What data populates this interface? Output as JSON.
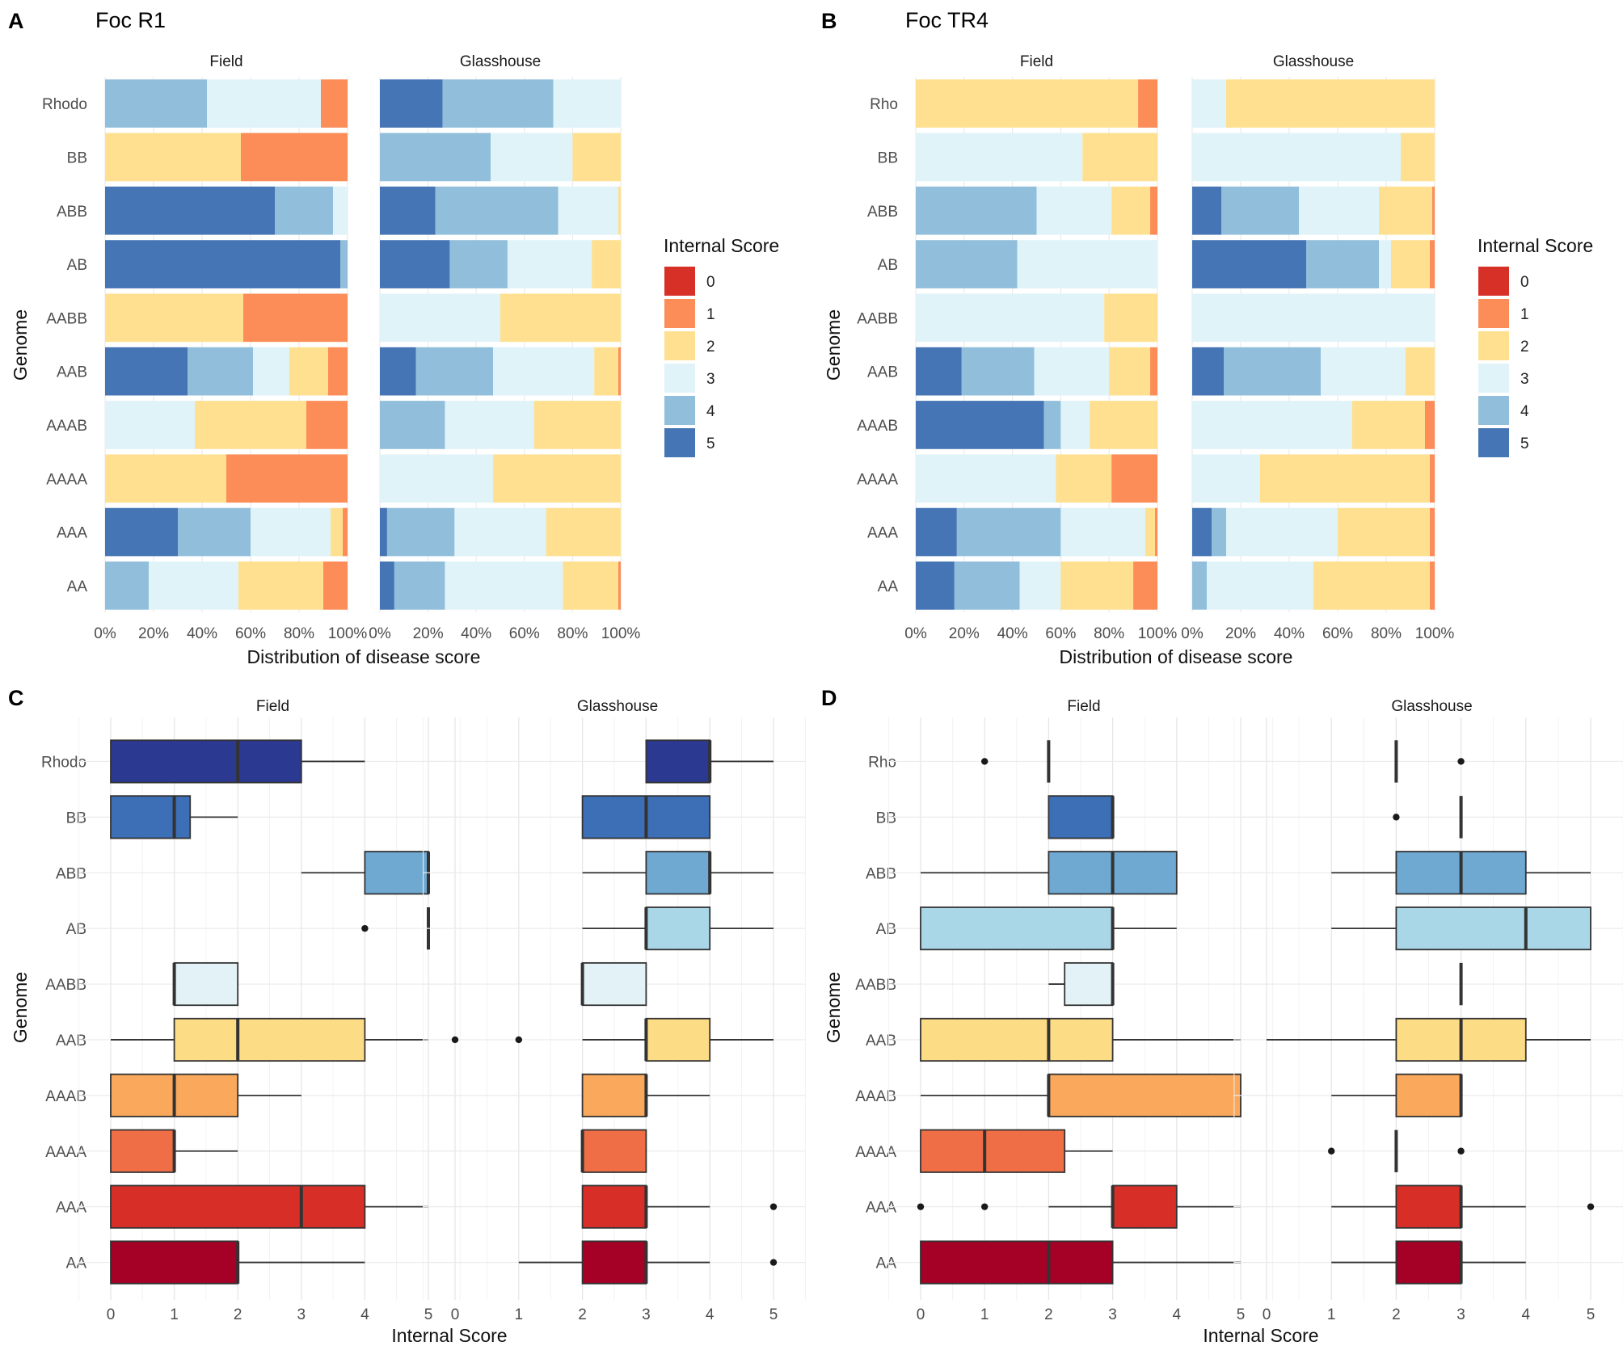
{
  "figure": {
    "panels": {
      "A": {
        "letter": "A",
        "title": "Foc R1"
      },
      "B": {
        "letter": "B",
        "title": "Foc TR4"
      },
      "C": {
        "letter": "C",
        "title": ""
      },
      "D": {
        "letter": "D",
        "title": ""
      }
    },
    "facets": [
      "Field",
      "Glasshouse"
    ],
    "axis_labels": {
      "genome": "Genome",
      "distribution": "Distribution of disease score",
      "internal": "Internal Score"
    },
    "legend": {
      "title": "Internal Score",
      "keys": [
        "0",
        "1",
        "2",
        "3",
        "4",
        "5"
      ],
      "colors": [
        "#d73027",
        "#fc8d59",
        "#fee090",
        "#e0f3f8",
        "#91bfdb",
        "#4575b4"
      ]
    }
  },
  "chart_data": [
    {
      "panel": "A",
      "type": "bar",
      "stacked": true,
      "orientation": "horizontal",
      "title": "Foc R1",
      "xlabel": "Distribution of disease score",
      "ylabel": "Genome",
      "xlim": [
        0,
        1
      ],
      "tick_labels": [
        "0%",
        "20%",
        "40%",
        "60%",
        "80%",
        "100%"
      ],
      "stack_order": [
        5,
        4,
        3,
        2,
        1,
        0
      ],
      "categories": [
        "Rhodo",
        "BB",
        "ABB",
        "AB",
        "AABB",
        "AAB",
        "AAAB",
        "AAAA",
        "AAA",
        "AA"
      ],
      "facets": [
        {
          "name": "Field",
          "proportions": {
            "Rhodo": [
              0,
              0.42,
              0.47,
              0,
              0.11,
              0
            ],
            "BB": [
              0,
              0,
              0,
              0.56,
              0.44,
              0
            ],
            "ABB": [
              0.7,
              0.24,
              0.06,
              0,
              0,
              0
            ],
            "AB": [
              0.97,
              0.03,
              0,
              0,
              0,
              0
            ],
            "AABB": [
              0,
              0,
              0,
              0.57,
              0.43,
              0
            ],
            "AAB": [
              0.34,
              0.27,
              0.15,
              0.16,
              0.08,
              0
            ],
            "AAAB": [
              0,
              0,
              0.37,
              0.46,
              0.17,
              0
            ],
            "AAAA": [
              0,
              0,
              0,
              0.5,
              0.5,
              0
            ],
            "AAA": [
              0.3,
              0.3,
              0.33,
              0.05,
              0.02,
              0
            ],
            "AA": [
              0,
              0.18,
              0.37,
              0.35,
              0.1,
              0
            ]
          }
        },
        {
          "name": "Glasshouse",
          "proportions": {
            "Rhodo": [
              0.26,
              0.46,
              0.28,
              0,
              0,
              0
            ],
            "BB": [
              0,
              0.46,
              0.34,
              0.2,
              0,
              0
            ],
            "ABB": [
              0.23,
              0.51,
              0.25,
              0.01,
              0,
              0
            ],
            "AB": [
              0.29,
              0.24,
              0.35,
              0.12,
              0,
              0
            ],
            "AABB": [
              0,
              0,
              0.5,
              0.5,
              0,
              0
            ],
            "AAB": [
              0.15,
              0.32,
              0.42,
              0.1,
              0.01,
              0
            ],
            "AAAB": [
              0,
              0.27,
              0.37,
              0.36,
              0,
              0
            ],
            "AAAA": [
              0,
              0,
              0.47,
              0.53,
              0,
              0
            ],
            "AAA": [
              0.03,
              0.28,
              0.38,
              0.31,
              0,
              0
            ],
            "AA": [
              0.06,
              0.21,
              0.49,
              0.23,
              0.01,
              0
            ]
          }
        }
      ]
    },
    {
      "panel": "B",
      "type": "bar",
      "stacked": true,
      "orientation": "horizontal",
      "title": "Foc TR4",
      "xlabel": "Distribution of disease score",
      "ylabel": "Genome",
      "xlim": [
        0,
        1
      ],
      "tick_labels": [
        "0%",
        "20%",
        "40%",
        "60%",
        "80%",
        "100%"
      ],
      "stack_order": [
        5,
        4,
        3,
        2,
        1,
        0
      ],
      "categories": [
        "Rho",
        "BB",
        "ABB",
        "AB",
        "AABB",
        "AAB",
        "AAAB",
        "AAAA",
        "AAA",
        "AA"
      ],
      "facets": [
        {
          "name": "Field",
          "proportions": {
            "Rho": [
              0,
              0,
              0,
              0.92,
              0.08,
              0
            ],
            "BB": [
              0,
              0,
              0.69,
              0.31,
              0,
              0
            ],
            "ABB": [
              0,
              0.5,
              0.31,
              0.16,
              0.03,
              0
            ],
            "AB": [
              0,
              0.42,
              0.58,
              0,
              0,
              0
            ],
            "AABB": [
              0,
              0,
              0.78,
              0.22,
              0,
              0
            ],
            "AAB": [
              0.19,
              0.3,
              0.31,
              0.17,
              0.03,
              0
            ],
            "AAAB": [
              0.53,
              0.07,
              0.12,
              0.28,
              0,
              0
            ],
            "AAAA": [
              0,
              0,
              0.58,
              0.23,
              0.19,
              0
            ],
            "AAA": [
              0.17,
              0.43,
              0.35,
              0.04,
              0.01,
              0
            ],
            "AA": [
              0.16,
              0.27,
              0.17,
              0.3,
              0.1,
              0
            ]
          }
        },
        {
          "name": "Glasshouse",
          "proportions": {
            "Rho": [
              0,
              0,
              0.14,
              0.86,
              0,
              0
            ],
            "BB": [
              0,
              0,
              0.86,
              0.14,
              0,
              0
            ],
            "ABB": [
              0.12,
              0.32,
              0.33,
              0.22,
              0.01,
              0
            ],
            "AB": [
              0.47,
              0.3,
              0.05,
              0.16,
              0.02,
              0
            ],
            "AABB": [
              0,
              0,
              1.0,
              0,
              0,
              0
            ],
            "AAB": [
              0.13,
              0.4,
              0.35,
              0.12,
              0,
              0
            ],
            "AAAB": [
              0,
              0,
              0.66,
              0.3,
              0.04,
              0
            ],
            "AAAA": [
              0,
              0,
              0.28,
              0.7,
              0.02,
              0
            ],
            "AAA": [
              0.08,
              0.06,
              0.46,
              0.38,
              0.02,
              0
            ],
            "AA": [
              0,
              0.06,
              0.44,
              0.48,
              0.02,
              0
            ]
          }
        }
      ]
    },
    {
      "panel": "C",
      "type": "boxplot",
      "orientation": "horizontal",
      "xlabel": "Internal Score",
      "ylabel": "Genome",
      "xlim": [
        0,
        5
      ],
      "tick_labels": [
        "0",
        "1",
        "2",
        "3",
        "4",
        "5"
      ],
      "categories": [
        "Rhodo",
        "BB",
        "ABB",
        "AB",
        "AABB",
        "AAB",
        "AAAB",
        "AAAA",
        "AAA",
        "AA"
      ],
      "box_colors": [
        "#2b3990",
        "#3c6fb5",
        "#6fa9d2",
        "#a9d7e8",
        "#e2f2f7",
        "#fddc86",
        "#f9a85c",
        "#f06e45",
        "#d72f28",
        "#a50026"
      ],
      "facets": [
        {
          "name": "Field",
          "boxes": [
            {
              "g": "Rhodo",
              "wlo": 0,
              "q1": 0,
              "med": 2,
              "q3": 3,
              "whi": 4,
              "out": []
            },
            {
              "g": "BB",
              "wlo": 0,
              "q1": 0,
              "med": 1,
              "q3": 1.25,
              "whi": 2,
              "out": []
            },
            {
              "g": "ABB",
              "wlo": 3,
              "q1": 4,
              "med": 5,
              "q3": 5,
              "whi": 5,
              "out": []
            },
            {
              "g": "AB",
              "wlo": 5,
              "q1": 5,
              "med": 5,
              "q3": 5,
              "whi": 5,
              "out": [
                4
              ]
            },
            {
              "g": "AABB",
              "wlo": 1,
              "q1": 1,
              "med": 1,
              "q3": 2,
              "whi": 2,
              "out": []
            },
            {
              "g": "AAB",
              "wlo": 0,
              "q1": 1,
              "med": 2,
              "q3": 4,
              "whi": 5,
              "out": []
            },
            {
              "g": "AAAB",
              "wlo": 0,
              "q1": 0,
              "med": 1,
              "q3": 2,
              "whi": 3,
              "out": []
            },
            {
              "g": "AAAA",
              "wlo": 0,
              "q1": 0,
              "med": 1,
              "q3": 1,
              "whi": 2,
              "out": []
            },
            {
              "g": "AAA",
              "wlo": 0,
              "q1": 0,
              "med": 3,
              "q3": 4,
              "whi": 5,
              "out": []
            },
            {
              "g": "AA",
              "wlo": 0,
              "q1": 0,
              "med": 2,
              "q3": 2,
              "whi": 4,
              "out": []
            }
          ]
        },
        {
          "name": "Glasshouse",
          "boxes": [
            {
              "g": "Rhodo",
              "wlo": 3,
              "q1": 3,
              "med": 4,
              "q3": 4,
              "whi": 5,
              "out": []
            },
            {
              "g": "BB",
              "wlo": 2,
              "q1": 2,
              "med": 3,
              "q3": 4,
              "whi": 4,
              "out": []
            },
            {
              "g": "ABB",
              "wlo": 2,
              "q1": 3,
              "med": 4,
              "q3": 4,
              "whi": 5,
              "out": []
            },
            {
              "g": "AB",
              "wlo": 2,
              "q1": 3,
              "med": 3,
              "q3": 4,
              "whi": 5,
              "out": []
            },
            {
              "g": "AABB",
              "wlo": 2,
              "q1": 2,
              "med": 2,
              "q3": 3,
              "whi": 3,
              "out": []
            },
            {
              "g": "AAB",
              "wlo": 2,
              "q1": 3,
              "med": 3,
              "q3": 4,
              "whi": 5,
              "out": [
                0,
                1
              ]
            },
            {
              "g": "AAAB",
              "wlo": 2,
              "q1": 2,
              "med": 3,
              "q3": 3,
              "whi": 4,
              "out": []
            },
            {
              "g": "AAAA",
              "wlo": 2,
              "q1": 2,
              "med": 2,
              "q3": 3,
              "whi": 3,
              "out": []
            },
            {
              "g": "AAA",
              "wlo": 2,
              "q1": 2,
              "med": 3,
              "q3": 3,
              "whi": 4,
              "out": [
                5
              ]
            },
            {
              "g": "AA",
              "wlo": 1,
              "q1": 2,
              "med": 3,
              "q3": 3,
              "whi": 4,
              "out": [
                5
              ]
            }
          ]
        }
      ]
    },
    {
      "panel": "D",
      "type": "boxplot",
      "orientation": "horizontal",
      "xlabel": "Internal Score",
      "ylabel": "Genome",
      "xlim": [
        0,
        5
      ],
      "tick_labels": [
        "0",
        "1",
        "2",
        "3",
        "4",
        "5"
      ],
      "categories": [
        "Rho",
        "BB",
        "ABB",
        "AB",
        "AABB",
        "AAB",
        "AAAB",
        "AAAA",
        "AAA",
        "AA"
      ],
      "box_colors": [
        "#2b3990",
        "#3c6fb5",
        "#6fa9d2",
        "#a9d7e8",
        "#e2f2f7",
        "#fddc86",
        "#f9a85c",
        "#f06e45",
        "#d72f28",
        "#a50026"
      ],
      "facets": [
        {
          "name": "Field",
          "boxes": [
            {
              "g": "Rho",
              "wlo": 2,
              "q1": 2,
              "med": 2,
              "q3": 2,
              "whi": 2,
              "out": [
                1
              ]
            },
            {
              "g": "BB",
              "wlo": 2,
              "q1": 2,
              "med": 3,
              "q3": 3,
              "whi": 3,
              "out": []
            },
            {
              "g": "ABB",
              "wlo": 0,
              "q1": 2,
              "med": 3,
              "q3": 4,
              "whi": 4,
              "out": []
            },
            {
              "g": "AB",
              "wlo": 0,
              "q1": 0,
              "med": 3,
              "q3": 3,
              "whi": 4,
              "out": []
            },
            {
              "g": "AABB",
              "wlo": 2,
              "q1": 2.25,
              "med": 3,
              "q3": 3,
              "whi": 3,
              "out": []
            },
            {
              "g": "AAB",
              "wlo": 0,
              "q1": 0,
              "med": 2,
              "q3": 3,
              "whi": 5,
              "out": []
            },
            {
              "g": "AAAB",
              "wlo": 0,
              "q1": 2,
              "med": 2,
              "q3": 5,
              "whi": 5,
              "out": []
            },
            {
              "g": "AAAA",
              "wlo": 0,
              "q1": 0,
              "med": 1,
              "q3": 2.25,
              "whi": 3,
              "out": []
            },
            {
              "g": "AAA",
              "wlo": 2,
              "q1": 3,
              "med": 3,
              "q3": 4,
              "whi": 5,
              "out": [
                0,
                1
              ]
            },
            {
              "g": "AA",
              "wlo": 0,
              "q1": 0,
              "med": 2,
              "q3": 3,
              "whi": 5,
              "out": []
            }
          ]
        },
        {
          "name": "Glasshouse",
          "boxes": [
            {
              "g": "Rho",
              "wlo": 2,
              "q1": 2,
              "med": 2,
              "q3": 2,
              "whi": 2,
              "out": [
                3
              ]
            },
            {
              "g": "BB",
              "wlo": 3,
              "q1": 3,
              "med": 3,
              "q3": 3,
              "whi": 3,
              "out": [
                2
              ]
            },
            {
              "g": "ABB",
              "wlo": 1,
              "q1": 2,
              "med": 3,
              "q3": 4,
              "whi": 5,
              "out": []
            },
            {
              "g": "AB",
              "wlo": 1,
              "q1": 2,
              "med": 4,
              "q3": 5,
              "whi": 5,
              "out": []
            },
            {
              "g": "AABB",
              "wlo": 3,
              "q1": 3,
              "med": 3,
              "q3": 3,
              "whi": 3,
              "out": []
            },
            {
              "g": "AAB",
              "wlo": 0,
              "q1": 2,
              "med": 3,
              "q3": 4,
              "whi": 5,
              "out": []
            },
            {
              "g": "AAAB",
              "wlo": 1,
              "q1": 2,
              "med": 3,
              "q3": 3,
              "whi": 3,
              "out": []
            },
            {
              "g": "AAAA",
              "wlo": 2,
              "q1": 2,
              "med": 2,
              "q3": 2,
              "whi": 2,
              "out": [
                1,
                3
              ]
            },
            {
              "g": "AAA",
              "wlo": 1,
              "q1": 2,
              "med": 3,
              "q3": 3,
              "whi": 4,
              "out": [
                5
              ]
            },
            {
              "g": "AA",
              "wlo": 1,
              "q1": 2,
              "med": 3,
              "q3": 3,
              "whi": 4,
              "out": []
            }
          ]
        }
      ]
    }
  ]
}
